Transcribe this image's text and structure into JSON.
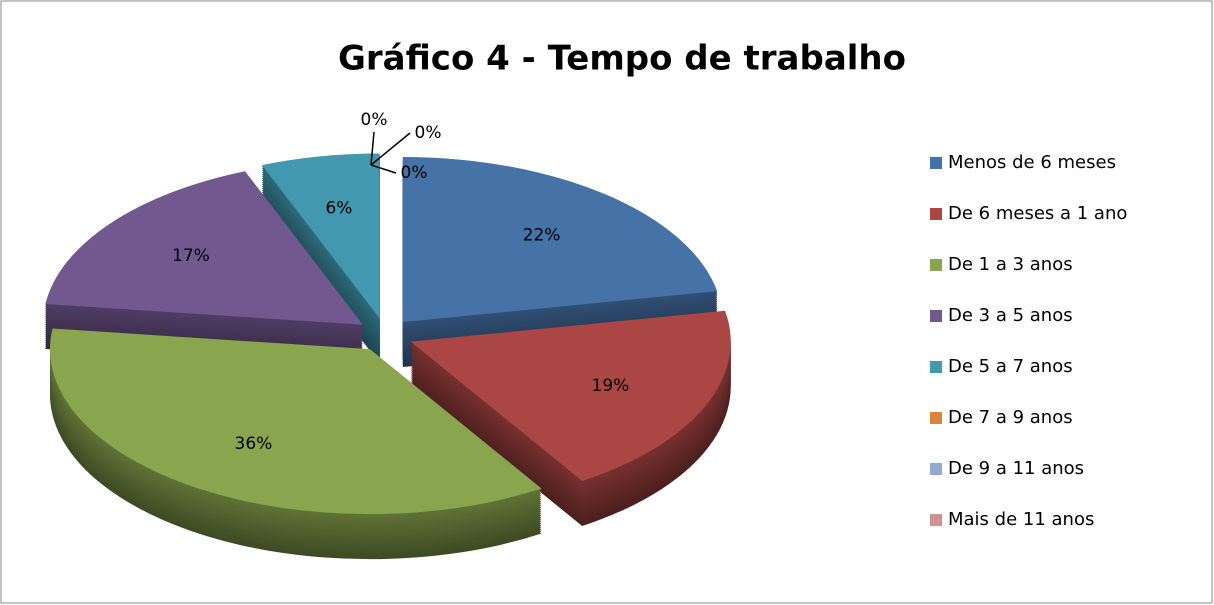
{
  "chart_data": {
    "type": "pie",
    "title": "Gráfico 4  - Tempo de trabalho",
    "categories": [
      "Menos de 6 meses",
      "De 6 meses a 1 ano",
      "De 1 a 3 anos",
      "De 3 a 5 anos",
      "De 5 a 7 anos",
      "De 7 a 9 anos",
      "De 9 a 11 anos",
      "Mais de 11 anos"
    ],
    "values": [
      22,
      19,
      36,
      17,
      6,
      0,
      0,
      0
    ],
    "value_labels": [
      "22%",
      "19%",
      "36%",
      "17%",
      "6%",
      "0%",
      "0%",
      "0%"
    ],
    "colors": [
      "#4572A7",
      "#AA4643",
      "#89A54E",
      "#71588F",
      "#4198AF",
      "#DB843D",
      "#93A9CF",
      "#D19392"
    ],
    "legend": "right"
  }
}
